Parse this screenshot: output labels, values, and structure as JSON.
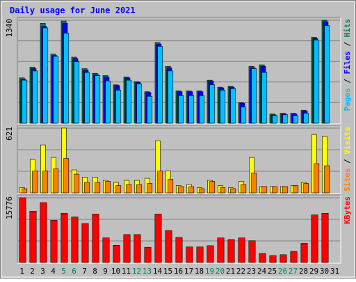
{
  "chart_data": {
    "type": "bar",
    "title": "Daily usage for June 2021",
    "categories": [
      "1",
      "2",
      "3",
      "4",
      "5",
      "6",
      "7",
      "8",
      "9",
      "10",
      "11",
      "12",
      "13",
      "14",
      "15",
      "16",
      "17",
      "18",
      "19",
      "20",
      "21",
      "22",
      "23",
      "24",
      "25",
      "26",
      "27",
      "28",
      "29",
      "30",
      "31"
    ],
    "weekend_categories": [
      "5",
      "6",
      "12",
      "13",
      "19",
      "20",
      "26",
      "27"
    ],
    "colors": {
      "title": "#0000ff",
      "background": "#c0c0c0",
      "hits": "#00805c",
      "files": "#0000ff",
      "pages": "#00c0ff",
      "visits": "#ffff00",
      "sites": "#ff8000",
      "kbytes": "#ff0000",
      "weekend_label": "#00805c"
    },
    "panels": [
      {
        "name": "hits-files-pages",
        "ymax_label": "1340",
        "ylim": [
          0,
          1340
        ],
        "legend": [
          {
            "text": "Pages",
            "color": "#00c0ff"
          },
          {
            "text": " / ",
            "color": "#000000"
          },
          {
            "text": "Files",
            "color": "#0000ff"
          },
          {
            "text": " / ",
            "color": "#000000"
          },
          {
            "text": "Hits",
            "color": "#00805c"
          }
        ],
        "series": [
          {
            "name": "Hits",
            "color": "#00805c",
            "values": [
              590,
              730,
              1300,
              900,
              1330,
              860,
              710,
              650,
              620,
              500,
              600,
              540,
              410,
              1050,
              740,
              420,
              420,
              420,
              560,
              470,
              480,
              270,
              740,
              760,
              120,
              130,
              130,
              170,
              1120,
              1340,
              0
            ]
          },
          {
            "name": "Files",
            "color": "#0000ff",
            "values": [
              570,
              710,
              1260,
              880,
              1300,
              840,
              690,
              630,
              600,
              490,
              590,
              530,
              400,
              1030,
              720,
              410,
              410,
              410,
              550,
              460,
              470,
              260,
              720,
              740,
              110,
              120,
              120,
              160,
              1100,
              1320,
              0
            ]
          },
          {
            "name": "Pages",
            "color": "#00c0ff",
            "values": [
              560,
              680,
              1240,
              870,
              1170,
              800,
              660,
              620,
              550,
              430,
              560,
              510,
              350,
              1000,
              680,
              360,
              360,
              360,
              500,
              430,
              450,
              210,
              710,
              660,
              100,
              110,
              100,
              130,
              1080,
              1270,
              0
            ]
          }
        ]
      },
      {
        "name": "visits-sites",
        "ymax_label": "621",
        "ylim": [
          0,
          621
        ],
        "legend": [
          {
            "text": "Sites",
            "color": "#ff8000"
          },
          {
            "text": " / ",
            "color": "#000000"
          },
          {
            "text": "Visits",
            "color": "#ffff00"
          }
        ],
        "series": [
          {
            "name": "Visits",
            "color": "#ffff00",
            "values": [
              50,
              320,
              460,
              340,
              621,
              220,
              150,
              150,
              120,
              100,
              120,
              120,
              140,
              500,
              210,
              70,
              80,
              50,
              120,
              70,
              50,
              110,
              340,
              60,
              60,
              60,
              70,
              100,
              560,
              540,
              0
            ]
          },
          {
            "name": "Sites",
            "color": "#ff8000",
            "values": [
              40,
              210,
              210,
              230,
              330,
              180,
              100,
              100,
              110,
              70,
              80,
              80,
              90,
              210,
              130,
              60,
              60,
              40,
              110,
              50,
              40,
              80,
              190,
              60,
              60,
              60,
              70,
              90,
              280,
              260,
              0
            ]
          }
        ]
      },
      {
        "name": "kbytes",
        "ymax_label": "15776",
        "ylim": [
          0,
          15776
        ],
        "legend": [
          {
            "text": "KBytes",
            "color": "#ff0000"
          }
        ],
        "series": [
          {
            "name": "KBytes",
            "color": "#ff0000",
            "values": [
              15776,
              12500,
              14600,
              10300,
              12000,
              11100,
              9500,
              11800,
              6000,
              4200,
              6800,
              6800,
              3700,
              11800,
              7800,
              6100,
              3800,
              3800,
              4100,
              6000,
              5600,
              6000,
              5300,
              2200,
              1700,
              1900,
              2700,
              4700,
              11600,
              12000,
              0
            ]
          }
        ]
      }
    ]
  }
}
